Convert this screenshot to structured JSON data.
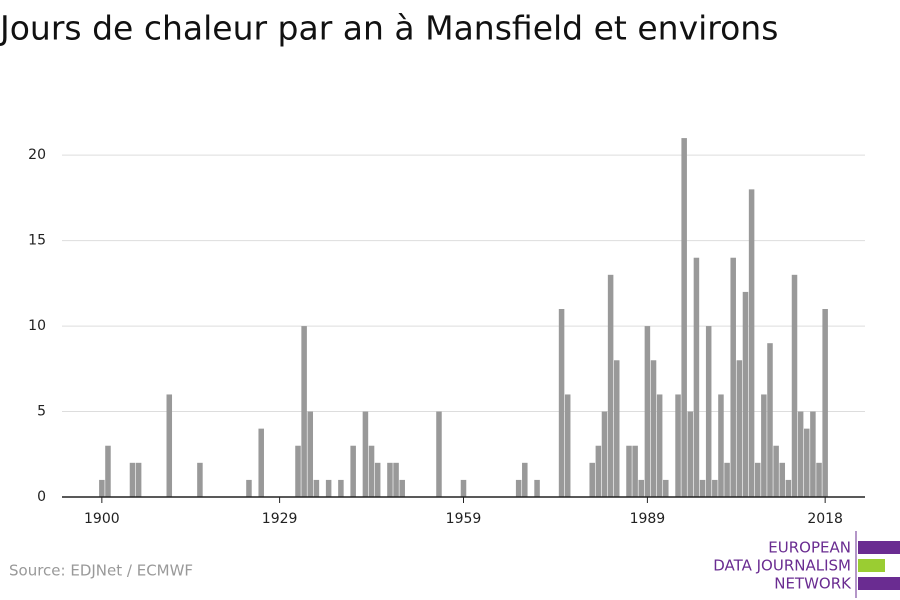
{
  "chart_data": {
    "type": "bar",
    "title": "Jours de chaleur par an à Mansfield et environs",
    "source": "Source: EDJNet / ECMWF",
    "logo": [
      "EUROPEAN",
      "DATA JOURNALISM",
      "NETWORK"
    ],
    "color": "#999999",
    "x": [
      1900,
      1901,
      1905,
      1906,
      1911,
      1916,
      1924,
      1926,
      1932,
      1933,
      1934,
      1935,
      1937,
      1939,
      1941,
      1943,
      1944,
      1945,
      1947,
      1948,
      1949,
      1955,
      1959,
      1968,
      1969,
      1971,
      1975,
      1976,
      1980,
      1981,
      1982,
      1983,
      1984,
      1986,
      1987,
      1988,
      1989,
      1990,
      1991,
      1992,
      1994,
      1995,
      1996,
      1997,
      1998,
      1999,
      2000,
      2001,
      2002,
      2003,
      2004,
      2005,
      2006,
      2007,
      2008,
      2009,
      2010,
      2011,
      2012,
      2013,
      2014,
      2015,
      2016,
      2017,
      2018
    ],
    "values": [
      1,
      3,
      2,
      2,
      6,
      2,
      1,
      4,
      3,
      10,
      5,
      1,
      1,
      1,
      3,
      5,
      3,
      2,
      2,
      2,
      1,
      5,
      1,
      1,
      2,
      1,
      11,
      6,
      2,
      3,
      5,
      13,
      8,
      3,
      3,
      1,
      10,
      8,
      6,
      1,
      6,
      21,
      5,
      14,
      1,
      10,
      1,
      6,
      2,
      14,
      8,
      12,
      18,
      2,
      6,
      9,
      3,
      2,
      1,
      13,
      5,
      4,
      5,
      2,
      11
    ],
    "xlim": [
      1893.5,
      2024.5
    ],
    "xticks": [
      1900,
      1929,
      1959,
      1989,
      2018
    ],
    "ylim": [
      0,
      22
    ],
    "yticks": [
      0,
      5,
      10,
      15,
      20
    ],
    "grid": true
  }
}
